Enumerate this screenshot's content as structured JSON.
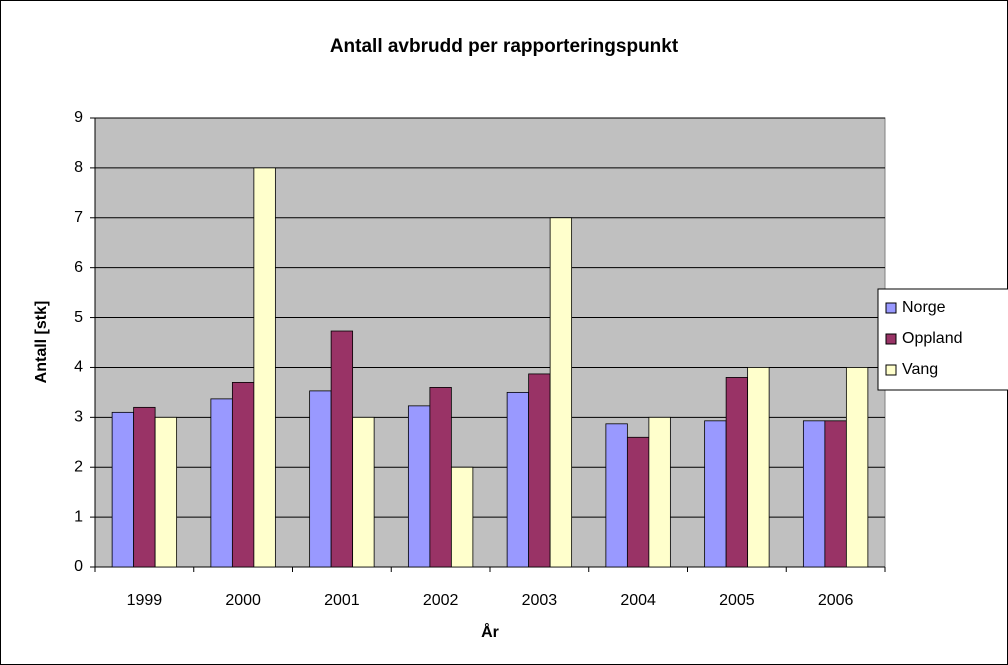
{
  "chart_data": {
    "type": "bar",
    "title": "Antall avbrudd per rapporteringspunkt",
    "x_label": "År",
    "y_label": "Antall [stk]",
    "categories": [
      "1999",
      "2000",
      "2001",
      "2002",
      "2003",
      "2004",
      "2005",
      "2006"
    ],
    "series": [
      {
        "name": "Norge",
        "color": "#9999ff",
        "values": [
          3.1,
          3.37,
          3.53,
          3.23,
          3.5,
          2.87,
          2.93,
          2.93
        ]
      },
      {
        "name": "Oppland",
        "color": "#993366",
        "values": [
          3.2,
          3.7,
          4.73,
          3.6,
          3.87,
          2.6,
          3.8,
          2.93
        ]
      },
      {
        "name": "Vang",
        "color": "#ffffcc",
        "values": [
          3,
          8,
          3,
          2,
          7,
          3,
          4,
          4
        ]
      }
    ],
    "ylim": [
      0,
      9
    ],
    "yticks": [
      0,
      1,
      2,
      3,
      4,
      5,
      6,
      7,
      8,
      9
    ],
    "grid": true,
    "legend": "right"
  }
}
